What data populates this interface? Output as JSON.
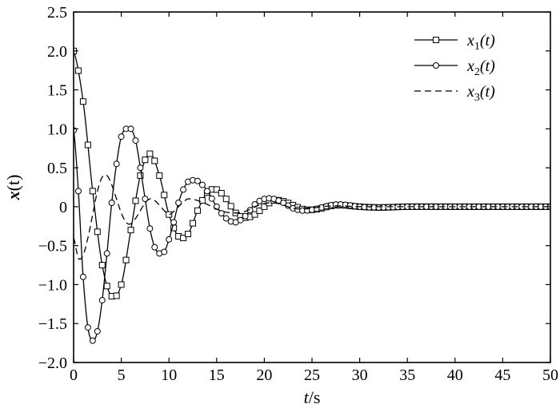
{
  "chart_data": {
    "type": "line",
    "title": "",
    "xlabel_var": "t",
    "xlabel_unit": "/s",
    "ylabel_main": "x",
    "ylabel_arg": "(t)",
    "xlim": [
      0,
      50
    ],
    "ylim": [
      -2.0,
      2.5
    ],
    "x_ticks": [
      0,
      5,
      10,
      15,
      20,
      25,
      30,
      35,
      40,
      45,
      50
    ],
    "x_tick_labels": [
      "0",
      "5",
      "10",
      "15",
      "20",
      "25",
      "30",
      "35",
      "40",
      "45",
      "50"
    ],
    "y_ticks": [
      -2.0,
      -1.5,
      -1.0,
      -0.5,
      0,
      0.5,
      1.0,
      1.5,
      2.0,
      2.5
    ],
    "y_tick_labels": [
      "−2.0",
      "−1.5",
      "−1.0",
      "−0.5",
      "0",
      "0.5",
      "1.0",
      "1.5",
      "2.0",
      "2.5"
    ],
    "grid": false,
    "legend_position": "top-right",
    "series": [
      {
        "name": "x1(t)",
        "legend_var": "x",
        "legend_sub": "1",
        "legend_arg": "(t)",
        "line_style": "solid",
        "marker": "square",
        "x": [
          0,
          1,
          2,
          3,
          4,
          5,
          6,
          7,
          8,
          9,
          10,
          11,
          12,
          13,
          14,
          15,
          16,
          17,
          18,
          19,
          20,
          21,
          22,
          23,
          24,
          25,
          26,
          27,
          28,
          30,
          32,
          35,
          40,
          45,
          50
        ],
        "y": [
          2.0,
          1.35,
          0.2,
          -0.75,
          -1.15,
          -1.0,
          -0.3,
          0.4,
          0.68,
          0.4,
          -0.1,
          -0.38,
          -0.35,
          -0.05,
          0.18,
          0.22,
          0.1,
          -0.08,
          -0.14,
          -0.1,
          0.0,
          0.08,
          0.07,
          0.02,
          -0.03,
          -0.04,
          -0.02,
          0.01,
          0.02,
          0.0,
          -0.01,
          0.0,
          0.0,
          0.0,
          0.0
        ]
      },
      {
        "name": "x2(t)",
        "legend_var": "x",
        "legend_sub": "2",
        "legend_arg": "(t)",
        "line_style": "solid",
        "marker": "circle",
        "x": [
          0,
          0.5,
          1,
          1.5,
          2,
          2.5,
          3,
          3.5,
          4,
          4.5,
          5,
          5.5,
          6,
          6.5,
          7,
          7.5,
          8,
          8.5,
          9,
          9.5,
          10,
          10.5,
          11,
          11.5,
          12,
          12.5,
          13,
          13.5,
          14,
          15,
          16,
          17,
          18,
          19,
          20,
          21,
          22,
          23,
          24,
          25,
          26,
          27,
          28,
          30,
          32,
          35,
          40,
          45,
          50
        ],
        "y": [
          0.98,
          0.2,
          -0.9,
          -1.55,
          -1.72,
          -1.6,
          -1.2,
          -0.6,
          0.05,
          0.55,
          0.9,
          1.0,
          1.0,
          0.85,
          0.5,
          0.1,
          -0.28,
          -0.52,
          -0.6,
          -0.58,
          -0.42,
          -0.2,
          0.05,
          0.22,
          0.32,
          0.34,
          0.33,
          0.28,
          0.2,
          0.0,
          -0.15,
          -0.2,
          -0.12,
          0.03,
          0.1,
          0.1,
          0.05,
          -0.02,
          -0.05,
          -0.04,
          -0.01,
          0.02,
          0.03,
          0.0,
          -0.01,
          0.0,
          0.0,
          0.0,
          0.0
        ]
      },
      {
        "name": "x3(t)",
        "legend_var": "x",
        "legend_sub": "3",
        "legend_arg": "(t)",
        "line_style": "dashed",
        "marker": "none",
        "x": [
          0,
          0.5,
          1,
          1.5,
          2,
          2.5,
          3,
          3.5,
          4,
          4.5,
          5,
          5.5,
          6,
          6.5,
          7,
          7.5,
          8,
          8.5,
          9,
          9.5,
          10,
          10.5,
          11,
          11.5,
          12,
          13,
          14,
          15,
          16,
          17,
          18,
          19,
          20,
          21,
          22,
          23,
          24,
          25,
          26,
          27,
          28,
          30,
          32,
          35,
          40,
          45,
          50
        ],
        "y": [
          -0.4,
          -0.66,
          -0.62,
          -0.4,
          -0.1,
          0.2,
          0.38,
          0.4,
          0.28,
          0.1,
          -0.08,
          -0.2,
          -0.22,
          -0.15,
          -0.05,
          0.05,
          0.1,
          0.08,
          0.02,
          -0.05,
          -0.1,
          -0.06,
          0.0,
          0.06,
          0.1,
          0.08,
          0.03,
          -0.03,
          -0.07,
          -0.08,
          -0.06,
          0.0,
          0.04,
          0.05,
          0.02,
          -0.02,
          -0.03,
          -0.02,
          0.0,
          0.01,
          0.01,
          0.0,
          0.0,
          0.0,
          0.0,
          0.0,
          0.0
        ]
      }
    ]
  }
}
